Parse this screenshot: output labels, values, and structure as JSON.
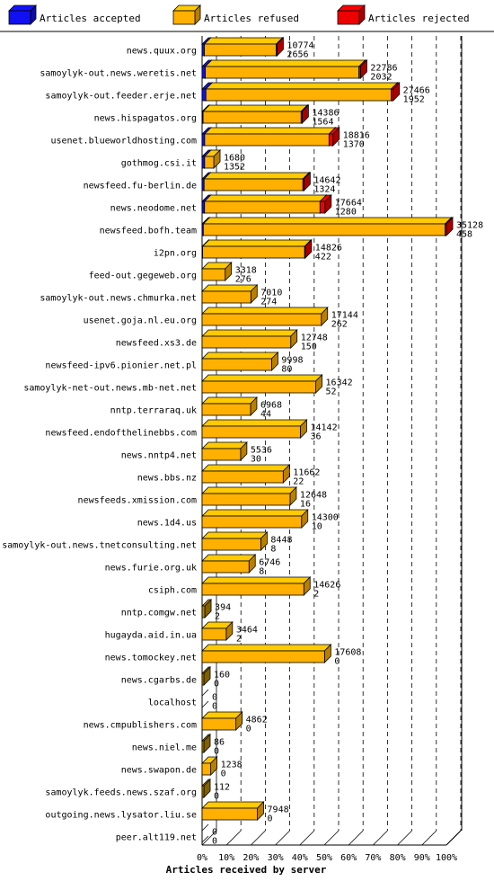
{
  "legend": {
    "accepted_label": "Articles accepted",
    "refused_label": "Articles refused",
    "rejected_label": "Articles rejected"
  },
  "colors": {
    "accepted": "#1010f0",
    "refused": "#ffb000",
    "rejected": "#ee0000",
    "grey": "#b38600"
  },
  "chart_data": {
    "type": "bar",
    "orientation": "horizontal",
    "stacked": true,
    "xlabel": "Articles received by server",
    "x_ticks": [
      "0%",
      "10%",
      "20%",
      "30%",
      "40%",
      "50%",
      "60%",
      "70%",
      "80%",
      "90%",
      "100%"
    ],
    "xlim": [
      0,
      100
    ],
    "grid": true,
    "series_names": [
      "Articles accepted",
      "Articles refused",
      "Articles rejected"
    ],
    "rows": [
      {
        "server": "news.quux.org",
        "accepted": 3,
        "refused": 95,
        "rejected": 1,
        "label_top": "10774",
        "label_bottom": "2656"
      },
      {
        "server": "samoylyk-out.news.weretis.net",
        "accepted": 2,
        "refused": 96,
        "rejected": 1,
        "label_top": "22786",
        "label_bottom": "2032"
      },
      {
        "server": "samoylyk-out.feeder.erje.net",
        "accepted": 2,
        "refused": 97,
        "rejected": 1,
        "label_top": "27466",
        "label_bottom": "1952"
      },
      {
        "server": "news.hispagatos.org",
        "accepted": 1,
        "refused": 98,
        "rejected": 1,
        "label_top": "14386",
        "label_bottom": "1564"
      },
      {
        "server": "usenet.blueworldhosting.com",
        "accepted": 2,
        "refused": 95,
        "rejected": 3,
        "label_top": "18816",
        "label_bottom": "1370"
      },
      {
        "server": "gothmog.csi.it",
        "accepted": 22,
        "refused": 78,
        "rejected": 0,
        "label_top": "1680",
        "label_bottom": "1352"
      },
      {
        "server": "newsfeed.fu-berlin.de",
        "accepted": 2,
        "refused": 97,
        "rejected": 1,
        "label_top": "14642",
        "label_bottom": "1324"
      },
      {
        "server": "news.neodome.net",
        "accepted": 2,
        "refused": 94,
        "rejected": 4,
        "label_top": "17664",
        "label_bottom": "1280"
      },
      {
        "server": "newsfeed.bofh.team",
        "accepted": 0.5,
        "refused": 99,
        "rejected": 0.5,
        "label_top": "35128",
        "label_bottom": "458"
      },
      {
        "server": "i2pn.org",
        "accepted": 0.5,
        "refused": 99,
        "rejected": 0.5,
        "label_top": "14826",
        "label_bottom": "422"
      },
      {
        "server": "feed-out.gegeweb.org",
        "accepted": 0,
        "refused": 100,
        "rejected": 0,
        "label_top": "3318",
        "label_bottom": "276"
      },
      {
        "server": "samoylyk-out.news.chmurka.net",
        "accepted": 0,
        "refused": 100,
        "rejected": 0,
        "label_top": "7010",
        "label_bottom": "274"
      },
      {
        "server": "usenet.goja.nl.eu.org",
        "accepted": 0,
        "refused": 100,
        "rejected": 0,
        "label_top": "17144",
        "label_bottom": "262"
      },
      {
        "server": "newsfeed.xs3.de",
        "accepted": 0,
        "refused": 100,
        "rejected": 0,
        "label_top": "12748",
        "label_bottom": "150"
      },
      {
        "server": "newsfeed-ipv6.pionier.net.pl",
        "accepted": 0,
        "refused": 100,
        "rejected": 0,
        "label_top": "9998",
        "label_bottom": "80"
      },
      {
        "server": "samoylyk-net-out.news.mb-net.net",
        "accepted": 0,
        "refused": 100,
        "rejected": 0,
        "label_top": "16342",
        "label_bottom": "52"
      },
      {
        "server": "nntp.terraraq.uk",
        "accepted": 0,
        "refused": 100,
        "rejected": 0,
        "label_top": "6968",
        "label_bottom": "44"
      },
      {
        "server": "newsfeed.endofthelinebbs.com",
        "accepted": 0,
        "refused": 100,
        "rejected": 0,
        "label_top": "14142",
        "label_bottom": "36"
      },
      {
        "server": "news.nntp4.net",
        "accepted": 0,
        "refused": 100,
        "rejected": 0,
        "label_top": "5536",
        "label_bottom": "30"
      },
      {
        "server": "news.bbs.nz",
        "accepted": 0,
        "refused": 100,
        "rejected": 0,
        "label_top": "11662",
        "label_bottom": "22"
      },
      {
        "server": "newsfeeds.xmission.com",
        "accepted": 0,
        "refused": 100,
        "rejected": 0,
        "label_top": "12648",
        "label_bottom": "16"
      },
      {
        "server": "news.1d4.us",
        "accepted": 0,
        "refused": 100,
        "rejected": 0,
        "label_top": "14300",
        "label_bottom": "10"
      },
      {
        "server": "samoylyk-out.news.tnetconsulting.net",
        "accepted": 0,
        "refused": 100,
        "rejected": 0,
        "label_top": "8448",
        "label_bottom": "8"
      },
      {
        "server": "news.furie.org.uk",
        "accepted": 0,
        "refused": 100,
        "rejected": 0,
        "label_top": "6746",
        "label_bottom": "8"
      },
      {
        "server": "csiph.com",
        "accepted": 0,
        "refused": 100,
        "rejected": 0,
        "label_top": "14626",
        "label_bottom": "2"
      },
      {
        "server": "nntp.comgw.net",
        "accepted": 0,
        "refused": 100,
        "rejected": 0,
        "label_top": "394",
        "label_bottom": "2"
      },
      {
        "server": "hugayda.aid.in.ua",
        "accepted": 0,
        "refused": 100,
        "rejected": 0,
        "label_top": "3464",
        "label_bottom": "2"
      },
      {
        "server": "news.tomockey.net",
        "accepted": 0,
        "refused": 100,
        "rejected": 0,
        "label_top": "17608",
        "label_bottom": "0"
      },
      {
        "server": "news.cgarbs.de",
        "accepted": 0,
        "refused": 100,
        "rejected": 0,
        "label_top": "160",
        "label_bottom": "0"
      },
      {
        "server": "localhost",
        "accepted": 0,
        "refused": 0,
        "rejected": 0,
        "label_top": "0",
        "label_bottom": "0"
      },
      {
        "server": "news.cmpublishers.com",
        "accepted": 0,
        "refused": 100,
        "rejected": 0,
        "label_top": "4862",
        "label_bottom": "0"
      },
      {
        "server": "news.niel.me",
        "accepted": 0,
        "refused": 100,
        "rejected": 0,
        "label_top": "86",
        "label_bottom": "0"
      },
      {
        "server": "news.swapon.de",
        "accepted": 0,
        "refused": 100,
        "rejected": 0,
        "label_top": "1238",
        "label_bottom": "0"
      },
      {
        "server": "samoylyk.feeds.news.szaf.org",
        "accepted": 0,
        "refused": 100,
        "rejected": 0,
        "label_top": "112",
        "label_bottom": "0"
      },
      {
        "server": "outgoing.news.lysator.liu.se",
        "accepted": 0,
        "refused": 100,
        "rejected": 0,
        "label_top": "7948",
        "label_bottom": "0"
      },
      {
        "server": "peer.alt119.net",
        "accepted": 0,
        "refused": 0,
        "rejected": 0,
        "label_top": "0",
        "label_bottom": "0"
      }
    ]
  }
}
